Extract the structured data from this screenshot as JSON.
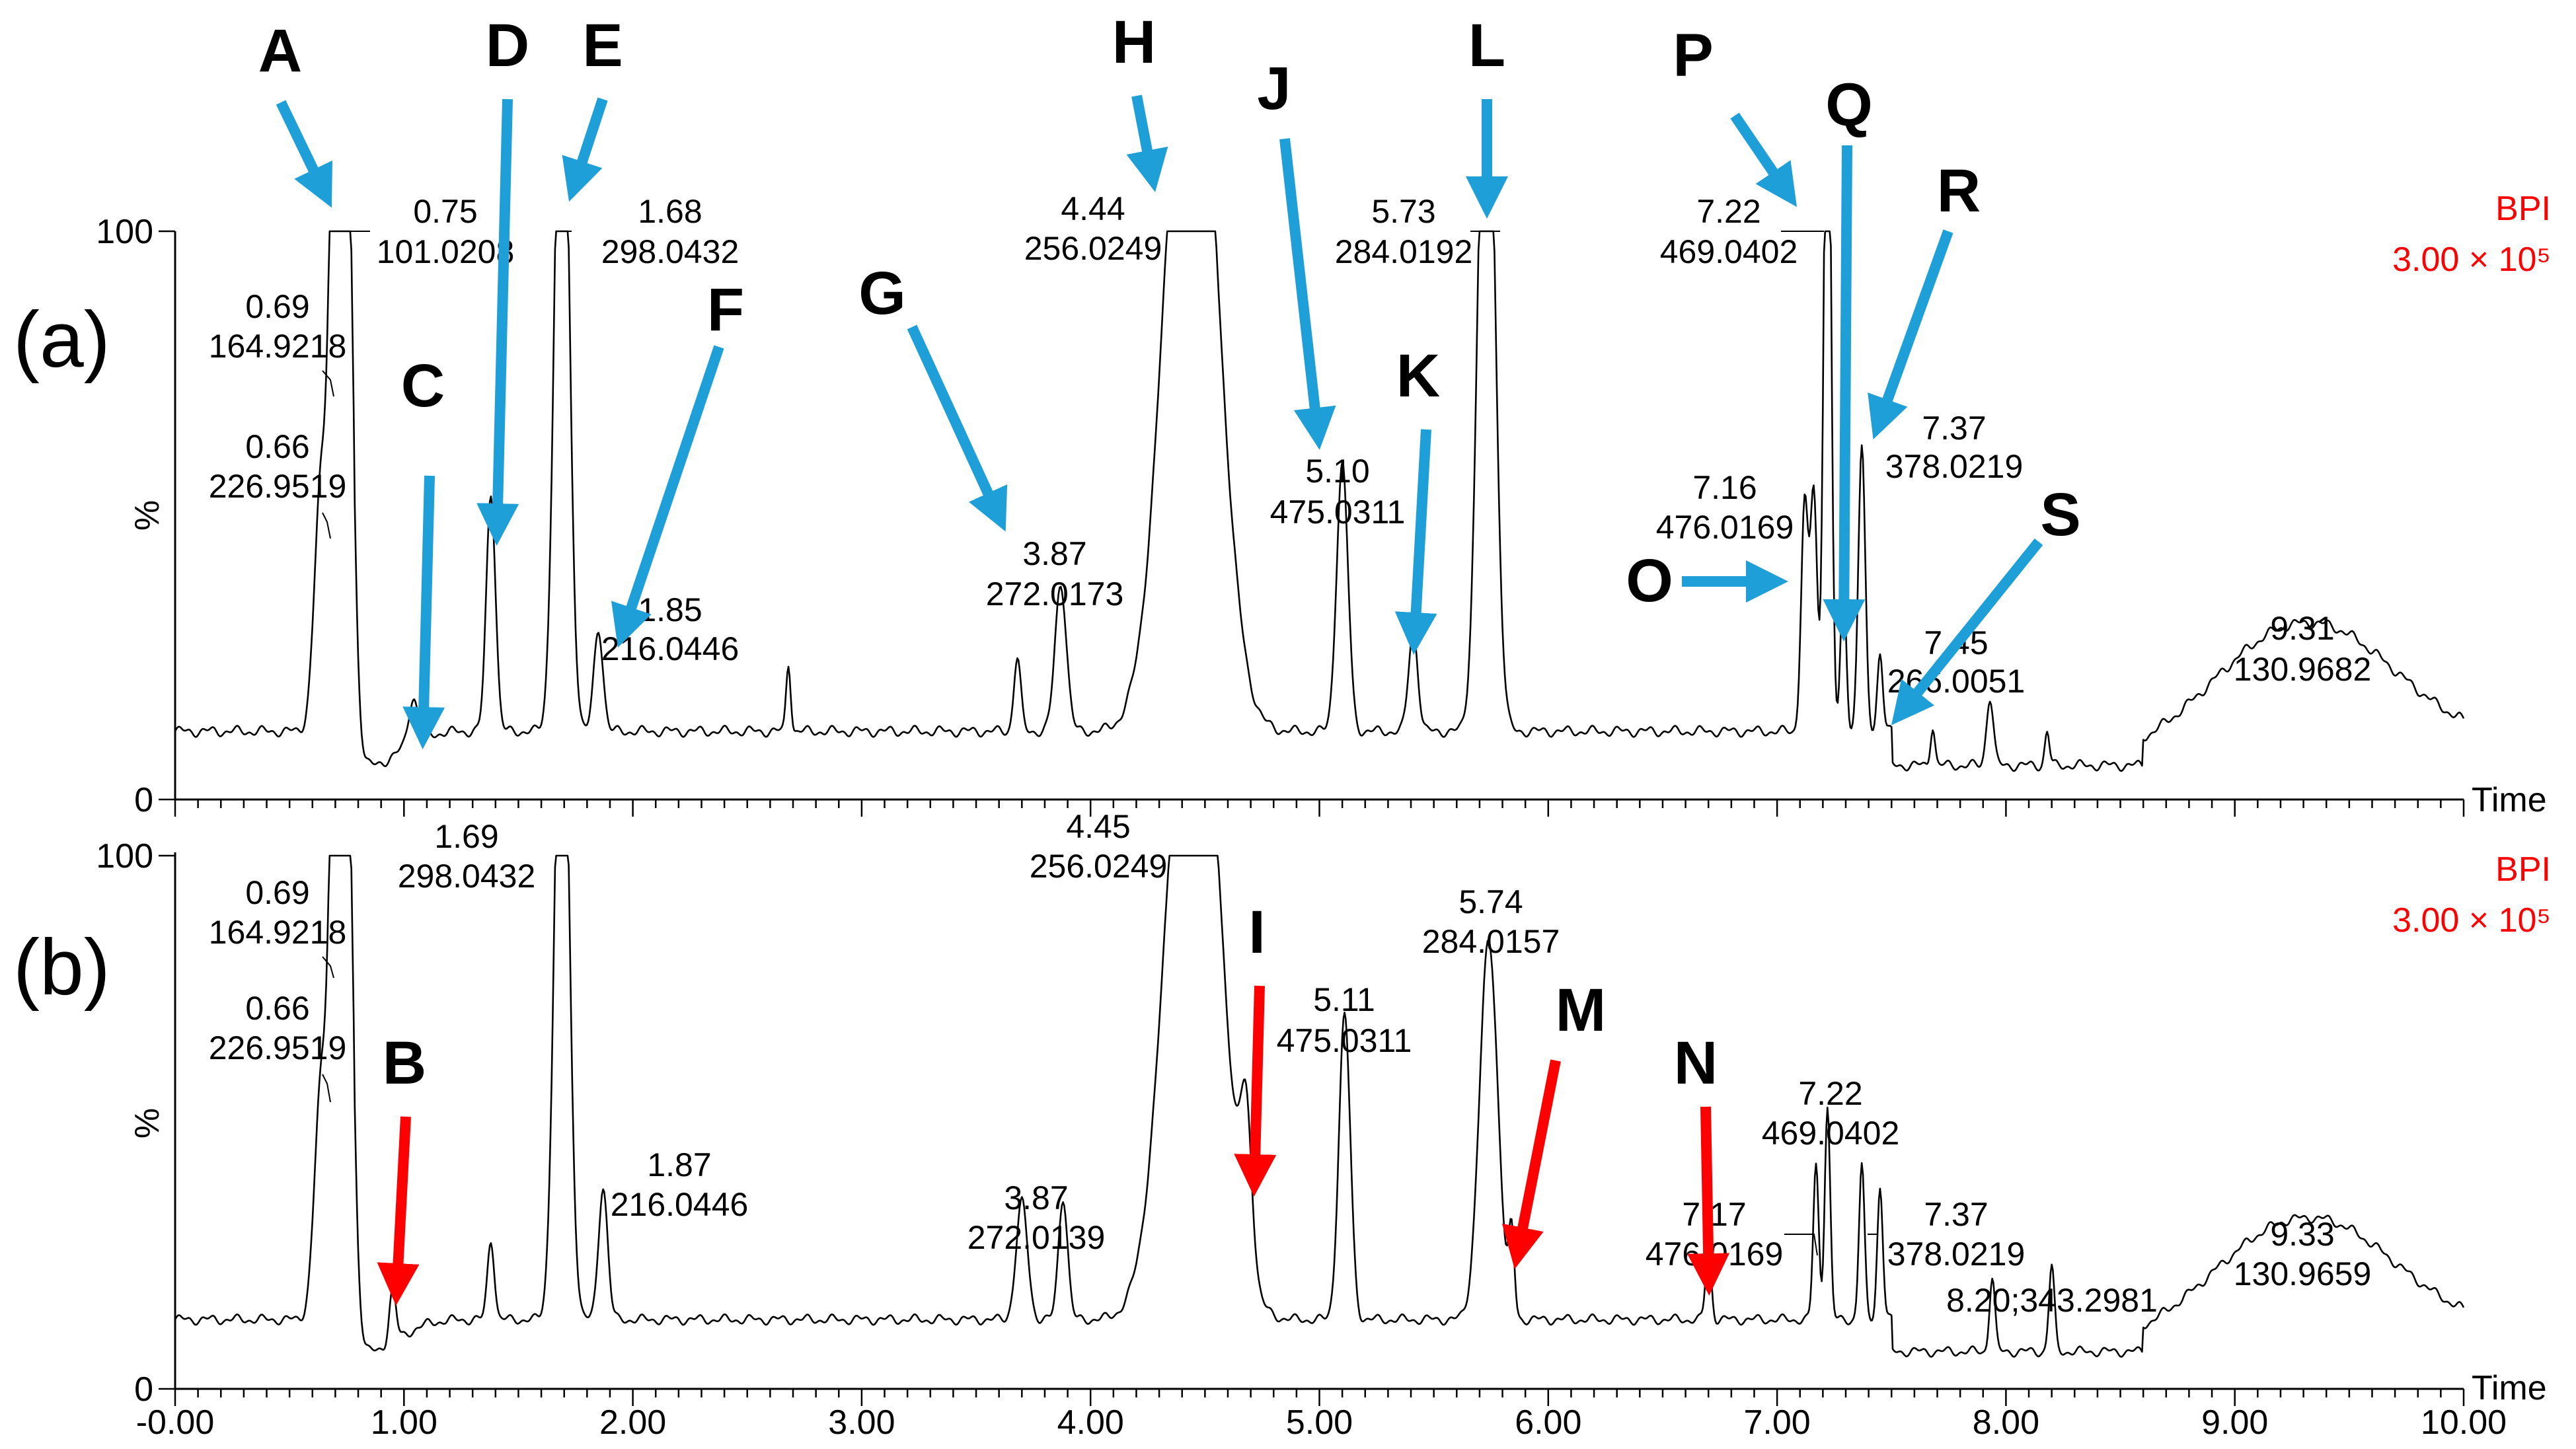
{
  "chart_data": {
    "type": "line",
    "title": "",
    "xlabel": "Time",
    "ylabel": "%",
    "xlim": [
      0,
      10
    ],
    "ylim": [
      0,
      100
    ],
    "x_ticks": [
      "-0.00",
      "1.00",
      "2.00",
      "3.00",
      "4.00",
      "5.00",
      "6.00",
      "7.00",
      "8.00",
      "9.00",
      "10.00"
    ],
    "x_tick_values": [
      0,
      1,
      2,
      3,
      4,
      5,
      6,
      7,
      8,
      9,
      10
    ],
    "y_ticks": [
      "0",
      "100"
    ],
    "colors": {
      "trace": "#000000",
      "blue_arrow": "#1E9FD8",
      "red_arrow": "#FF0000",
      "bpi": "#FF0000"
    },
    "panels": [
      {
        "panel_label": "(a)",
        "bpi_label": "BPI",
        "bpi_scale": "3.00 × 10⁵",
        "baseline": 12,
        "peaks": [
          {
            "rt": 0.64,
            "h": 45,
            "w": 0.03
          },
          {
            "rt": 0.69,
            "h": 72,
            "w": 0.02
          },
          {
            "rt": 0.74,
            "h": 140,
            "w": 0.03
          },
          {
            "rt": 1.04,
            "h": 8,
            "w": 0.02
          },
          {
            "rt": 1.38,
            "h": 42,
            "w": 0.02
          },
          {
            "rt": 1.69,
            "h": 140,
            "w": 0.03
          },
          {
            "rt": 1.85,
            "h": 18,
            "w": 0.02
          },
          {
            "rt": 2.68,
            "h": 12,
            "w": 0.01
          },
          {
            "rt": 3.68,
            "h": 13,
            "w": 0.015
          },
          {
            "rt": 3.87,
            "h": 26,
            "w": 0.025
          },
          {
            "rt": 4.44,
            "h": 140,
            "w": 0.11
          },
          {
            "rt": 5.1,
            "h": 47,
            "w": 0.025
          },
          {
            "rt": 5.41,
            "h": 18,
            "w": 0.02
          },
          {
            "rt": 5.73,
            "h": 140,
            "w": 0.035
          },
          {
            "rt": 7.12,
            "h": 40,
            "w": 0.015
          },
          {
            "rt": 7.16,
            "h": 42,
            "w": 0.015
          },
          {
            "rt": 7.22,
            "h": 140,
            "w": 0.015
          },
          {
            "rt": 7.29,
            "h": 27,
            "w": 0.012
          },
          {
            "rt": 7.37,
            "h": 50,
            "w": 0.015
          },
          {
            "rt": 7.45,
            "h": 14,
            "w": 0.012
          },
          {
            "rt": 7.68,
            "h": 7,
            "w": 0.01
          },
          {
            "rt": 7.93,
            "h": 12,
            "w": 0.015
          },
          {
            "rt": 8.18,
            "h": 6,
            "w": 0.01
          }
        ],
        "labels": [
          {
            "rt": "0.66",
            "mz": "226.9519"
          },
          {
            "rt": "0.69",
            "mz": "164.9218"
          },
          {
            "rt": "0.75",
            "mz": "101.0208"
          },
          {
            "rt": "1.68",
            "mz": "298.0432"
          },
          {
            "rt": "1.85",
            "mz": "216.0446"
          },
          {
            "rt": "3.87",
            "mz": "272.0173"
          },
          {
            "rt": "4.44",
            "mz": "256.0249"
          },
          {
            "rt": "5.10",
            "mz": "475.0311"
          },
          {
            "rt": "5.73",
            "mz": "284.0192"
          },
          {
            "rt": "7.16",
            "mz": "476.0169"
          },
          {
            "rt": "7.22",
            "mz": "469.0402"
          },
          {
            "rt": "7.37",
            "mz": "378.0219"
          },
          {
            "rt": "7.45",
            "mz": "266.0051"
          },
          {
            "rt": "9.31",
            "mz": "130.9682"
          }
        ],
        "markers": [
          "A",
          "C",
          "D",
          "E",
          "F",
          "G",
          "H",
          "J",
          "K",
          "L",
          "O",
          "P",
          "Q",
          "R",
          "S"
        ]
      },
      {
        "panel_label": "(b)",
        "bpi_label": "BPI",
        "bpi_scale": "3.00 × 10⁵",
        "baseline": 13,
        "peaks": [
          {
            "rt": 0.64,
            "h": 45,
            "w": 0.03
          },
          {
            "rt": 0.69,
            "h": 72,
            "w": 0.02
          },
          {
            "rt": 0.74,
            "h": 140,
            "w": 0.03
          },
          {
            "rt": 0.95,
            "h": 10,
            "w": 0.015
          },
          {
            "rt": 1.38,
            "h": 15,
            "w": 0.015
          },
          {
            "rt": 1.69,
            "h": 140,
            "w": 0.03
          },
          {
            "rt": 1.87,
            "h": 25,
            "w": 0.02
          },
          {
            "rt": 3.7,
            "h": 22,
            "w": 0.025
          },
          {
            "rt": 3.88,
            "h": 23,
            "w": 0.02
          },
          {
            "rt": 4.45,
            "h": 140,
            "w": 0.11
          },
          {
            "rt": 4.68,
            "h": 28,
            "w": 0.025
          },
          {
            "rt": 5.11,
            "h": 57,
            "w": 0.025
          },
          {
            "rt": 5.74,
            "h": 71,
            "w": 0.04
          },
          {
            "rt": 5.84,
            "h": 15,
            "w": 0.012
          },
          {
            "rt": 6.7,
            "h": 14,
            "w": 0.012
          },
          {
            "rt": 7.17,
            "h": 29,
            "w": 0.012
          },
          {
            "rt": 7.22,
            "h": 40,
            "w": 0.012
          },
          {
            "rt": 7.37,
            "h": 29,
            "w": 0.012
          },
          {
            "rt": 7.45,
            "h": 25,
            "w": 0.012
          },
          {
            "rt": 7.94,
            "h": 14,
            "w": 0.012
          },
          {
            "rt": 8.2,
            "h": 16,
            "w": 0.012
          }
        ],
        "labels": [
          {
            "rt": "0.66",
            "mz": "226.9519"
          },
          {
            "rt": "0.69",
            "mz": "164.9218"
          },
          {
            "rt": "1.69",
            "mz": "298.0432"
          },
          {
            "rt": "1.87",
            "mz": "216.0446"
          },
          {
            "rt": "3.87",
            "mz": "272.0139"
          },
          {
            "rt": "4.45",
            "mz": "256.0249"
          },
          {
            "rt": "5.11",
            "mz": "475.0311"
          },
          {
            "rt": "5.74",
            "mz": "284.0157"
          },
          {
            "rt": "7.17",
            "mz": "476.0169"
          },
          {
            "rt": "7.22",
            "mz": "469.0402"
          },
          {
            "rt": "7.37",
            "mz": "378.0219"
          },
          {
            "rt": "8.20",
            "mz": "343.2981"
          },
          {
            "rt": "9.33",
            "mz": "130.9659"
          }
        ],
        "markers": [
          "B",
          "I",
          "M",
          "N"
        ]
      }
    ]
  }
}
